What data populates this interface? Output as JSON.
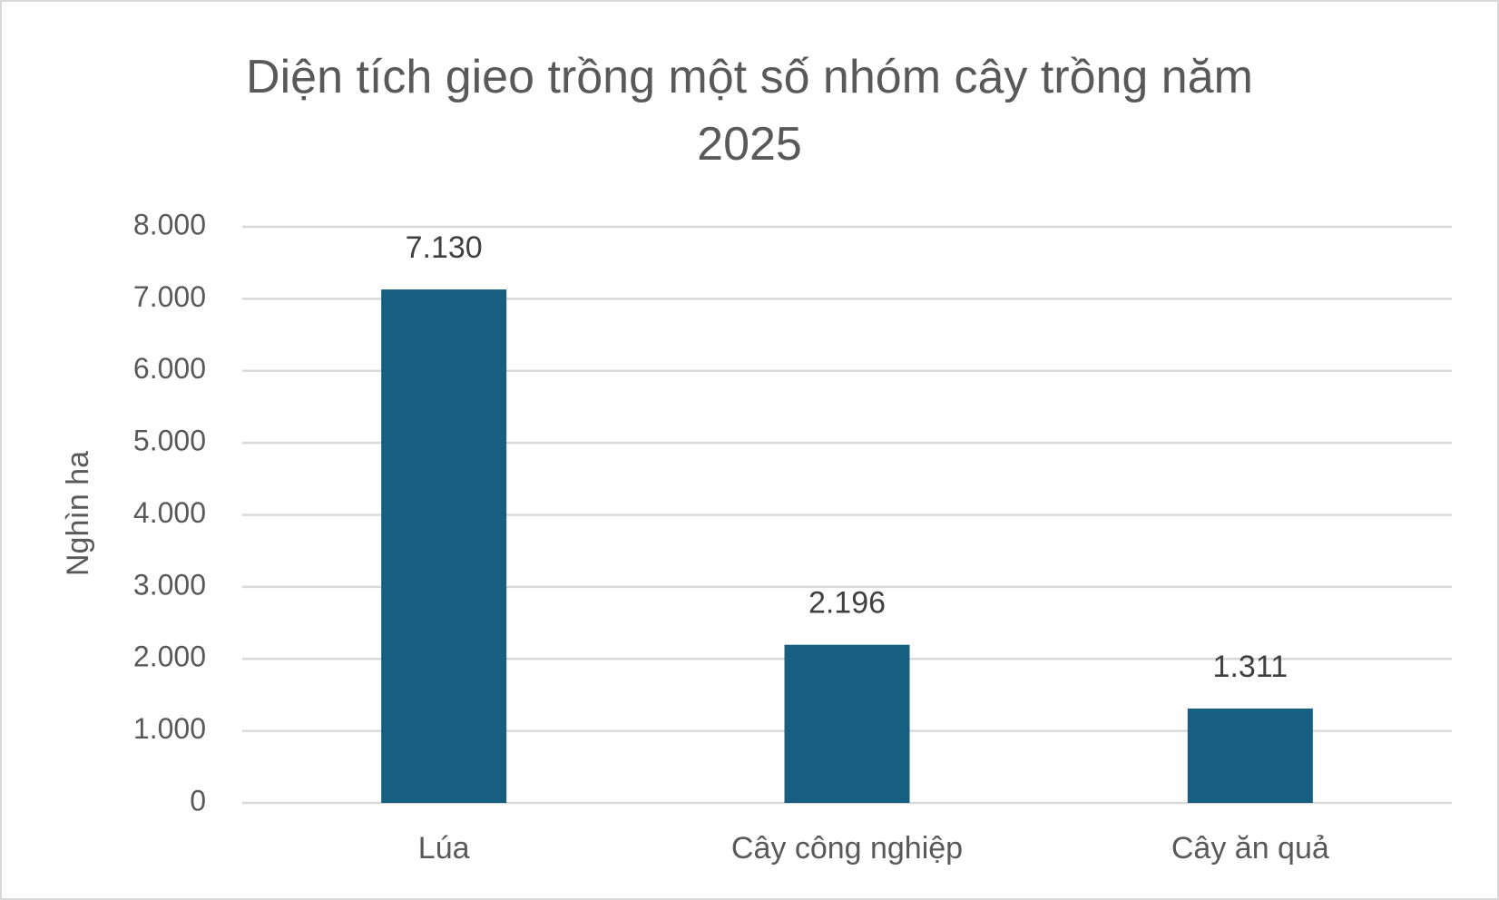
{
  "chart_data": {
    "type": "bar",
    "title": "Diện tích gieo trồng một số nhóm cây trồng năm 2025",
    "y_label": "Nghìn ha",
    "categories": [
      "Lúa",
      "Cây công nghiệp",
      "Cây ăn quả"
    ],
    "values": [
      7130,
      2196,
      1311
    ],
    "value_labels": [
      "7.130",
      "2.196",
      "1.311"
    ],
    "color": "#175f80",
    "ylim": [
      0,
      8000
    ],
    "yticks": [
      0,
      {
        "value": 1000,
        "label": "1.000"
      },
      {
        "value": 2000,
        "label": "2.000"
      },
      {
        "value": 3000,
        "label": "3.000"
      },
      {
        "value": 4000,
        "label": "4.000"
      },
      {
        "value": 5000,
        "label": "5.000"
      },
      {
        "value": 6000,
        "label": "6.000"
      },
      {
        "value": 7000,
        "label": "7.000"
      },
      {
        "value": 8000,
        "label": "8.000"
      }
    ],
    "grid": true
  }
}
